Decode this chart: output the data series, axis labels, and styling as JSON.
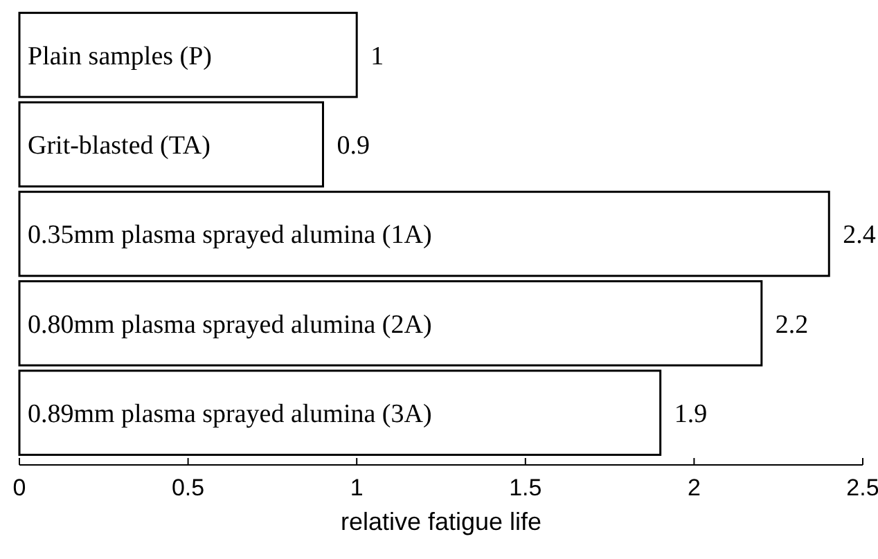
{
  "chart_data": {
    "type": "bar",
    "orientation": "horizontal",
    "xlabel": "relative fatigue life",
    "categories": [
      "Plain samples (P)",
      "Grit-blasted (TA)",
      "0.35mm plasma sprayed alumina (1A)",
      "0.80mm plasma sprayed alumina (2A)",
      "0.89mm plasma sprayed alumina (3A)"
    ],
    "values": [
      1,
      0.9,
      2.4,
      2.2,
      1.9
    ],
    "color": "#ffffff",
    "data_labels": true,
    "xlim": [
      0,
      2.5
    ],
    "xticks": [
      0,
      0.5,
      1,
      1.5,
      2,
      2.5
    ],
    "grid": false
  }
}
